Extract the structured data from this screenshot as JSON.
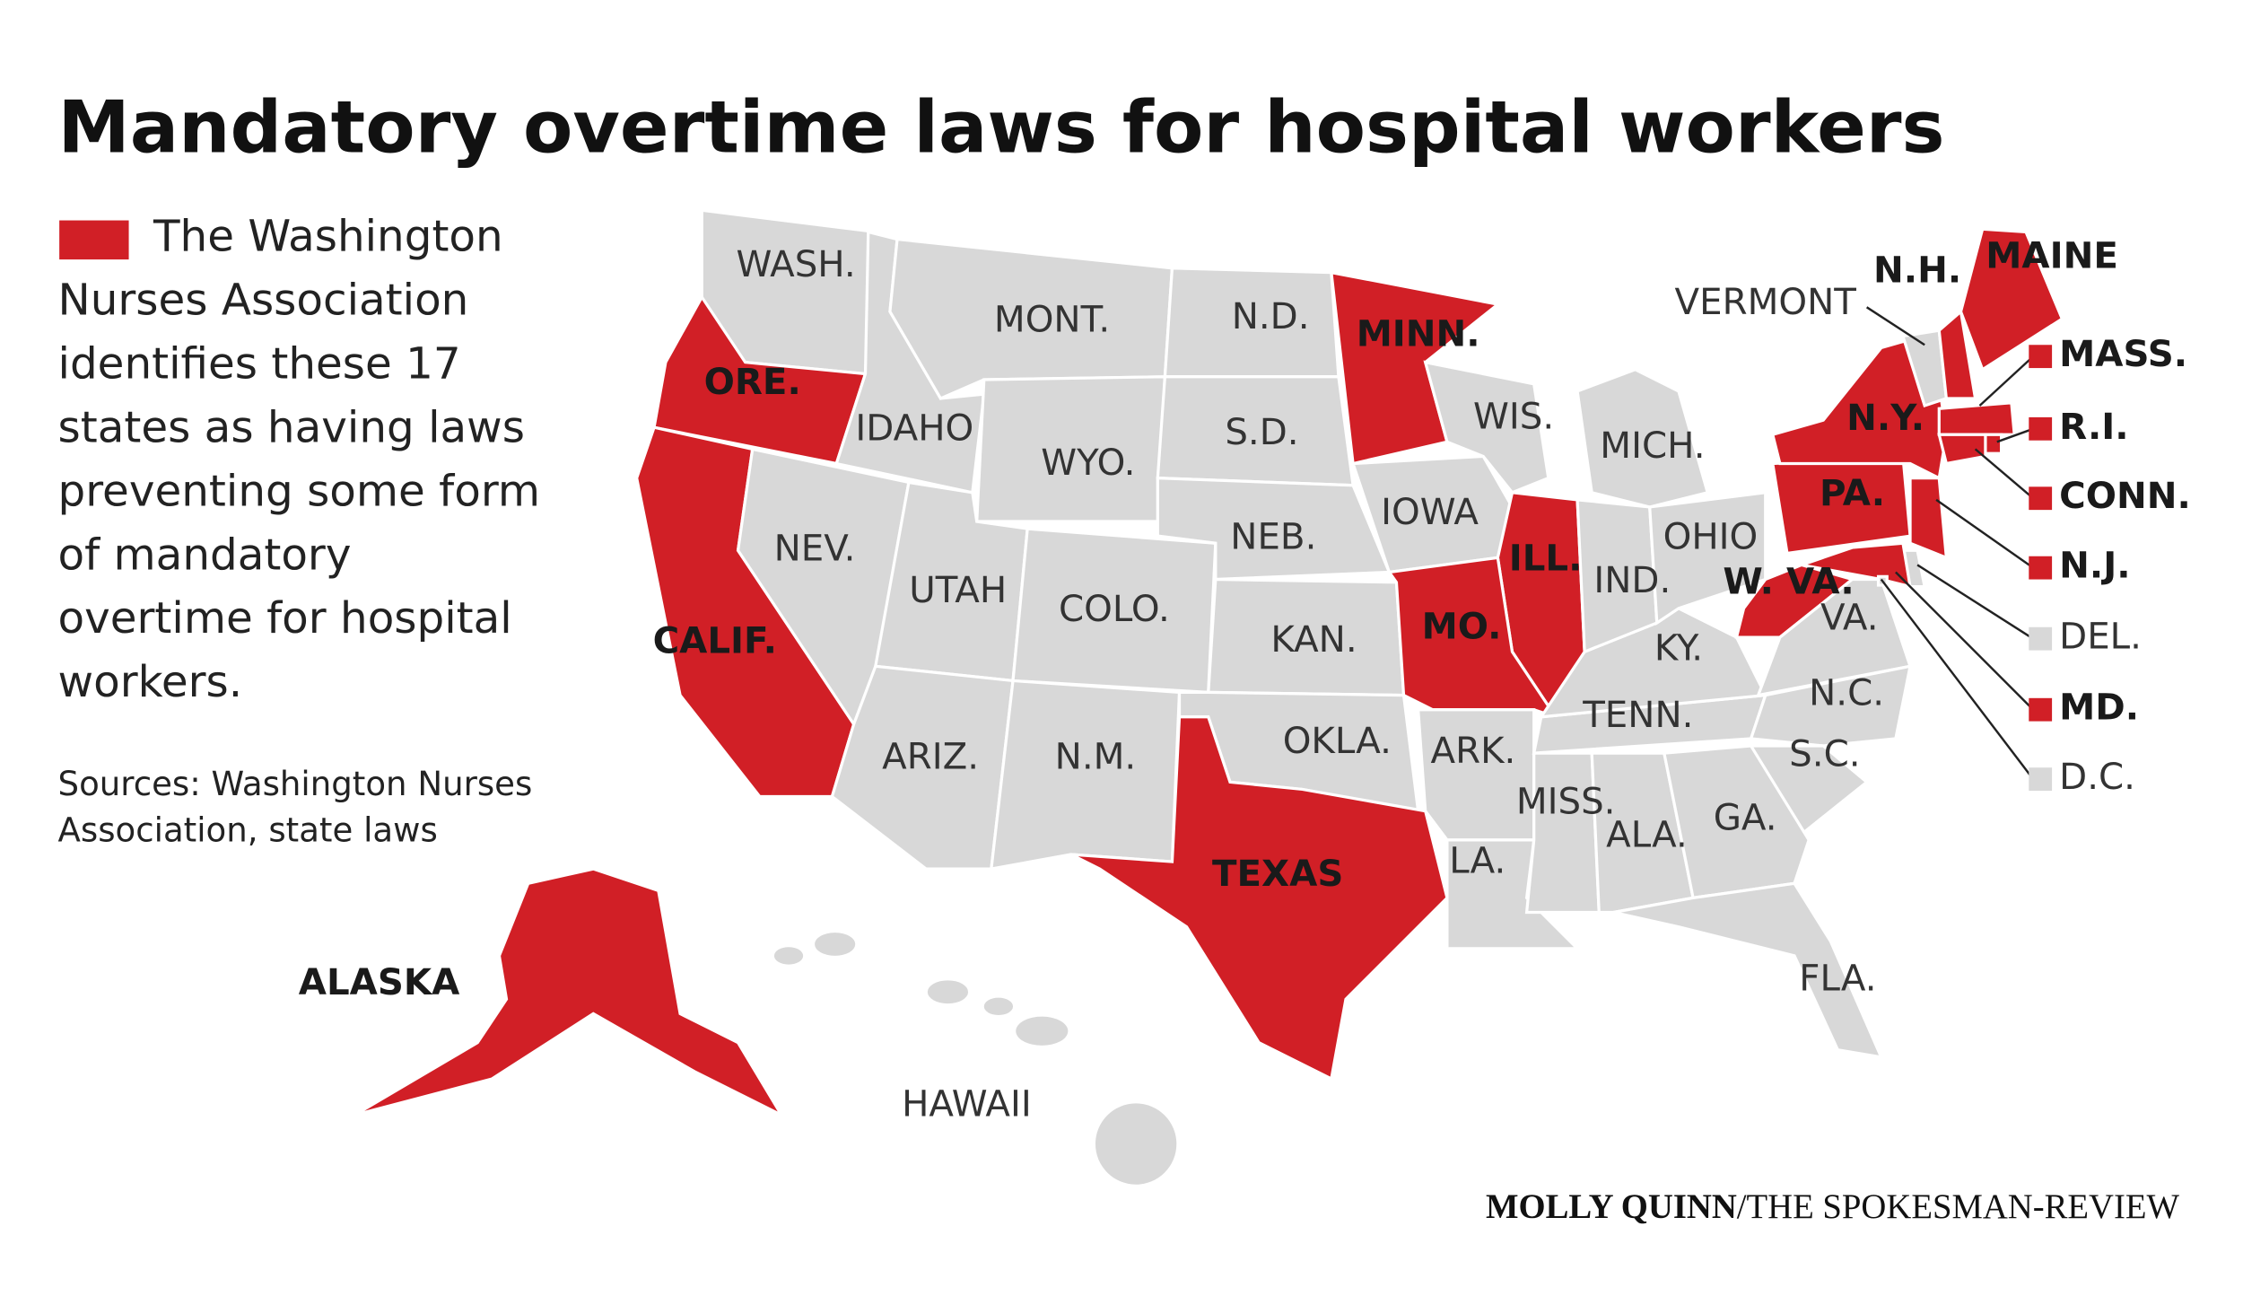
{
  "title": "Mandatory overtime laws for hospital workers",
  "legend": "The Washington Nurses Association identifies these 17 states as having laws preventing some form of mandatory overtime for hospital workers.",
  "sources": "Sources: Washington Nurses Association, state laws",
  "credit": {
    "author": "MOLLY QUINN",
    "outlet": "/THE SPOKESMAN-REVIEW"
  },
  "colors": {
    "highlighted": "#d11f26",
    "other": "#d8d8d8"
  },
  "states": [
    {
      "label": "WASH.",
      "highlighted": false
    },
    {
      "label": "ORE.",
      "highlighted": true
    },
    {
      "label": "CALIF.",
      "highlighted": true
    },
    {
      "label": "NEV.",
      "highlighted": false
    },
    {
      "label": "IDAHO",
      "highlighted": false
    },
    {
      "label": "MONT.",
      "highlighted": false
    },
    {
      "label": "WYO.",
      "highlighted": false
    },
    {
      "label": "UTAH",
      "highlighted": false
    },
    {
      "label": "COLO.",
      "highlighted": false
    },
    {
      "label": "ARIZ.",
      "highlighted": false
    },
    {
      "label": "N.M.",
      "highlighted": false
    },
    {
      "label": "N.D.",
      "highlighted": false
    },
    {
      "label": "S.D.",
      "highlighted": false
    },
    {
      "label": "NEB.",
      "highlighted": false
    },
    {
      "label": "KAN.",
      "highlighted": false
    },
    {
      "label": "OKLA.",
      "highlighted": false
    },
    {
      "label": "TEXAS",
      "highlighted": true
    },
    {
      "label": "MINN.",
      "highlighted": true
    },
    {
      "label": "IOWA",
      "highlighted": false
    },
    {
      "label": "WIS.",
      "highlighted": false
    },
    {
      "label": "ILL.",
      "highlighted": true
    },
    {
      "label": "MO.",
      "highlighted": true
    },
    {
      "label": "ARK.",
      "highlighted": false
    },
    {
      "label": "LA.",
      "highlighted": false
    },
    {
      "label": "MISS.",
      "highlighted": false
    },
    {
      "label": "ALA.",
      "highlighted": false
    },
    {
      "label": "TENN.",
      "highlighted": false
    },
    {
      "label": "KY.",
      "highlighted": false
    },
    {
      "label": "IND.",
      "highlighted": false
    },
    {
      "label": "OHIO",
      "highlighted": false
    },
    {
      "label": "MICH.",
      "highlighted": false
    },
    {
      "label": "W. VA.",
      "highlighted": true
    },
    {
      "label": "VA.",
      "highlighted": false
    },
    {
      "label": "N.C.",
      "highlighted": false
    },
    {
      "label": "S.C.",
      "highlighted": false
    },
    {
      "label": "GA.",
      "highlighted": false
    },
    {
      "label": "FLA.",
      "highlighted": false
    },
    {
      "label": "PA.",
      "highlighted": true
    },
    {
      "label": "N.Y.",
      "highlighted": true
    },
    {
      "label": "VERMONT",
      "highlighted": false
    },
    {
      "label": "N.H.",
      "highlighted": true
    },
    {
      "label": "MAINE",
      "highlighted": true
    },
    {
      "label": "MASS.",
      "highlighted": true
    },
    {
      "label": "R.I.",
      "highlighted": true
    },
    {
      "label": "CONN.",
      "highlighted": true
    },
    {
      "label": "N.J.",
      "highlighted": true
    },
    {
      "label": "DEL.",
      "highlighted": false
    },
    {
      "label": "MD.",
      "highlighted": true
    },
    {
      "label": "D.C.",
      "highlighted": false
    },
    {
      "label": "ALASKA",
      "highlighted": true
    },
    {
      "label": "HAWAII",
      "highlighted": false
    }
  ]
}
